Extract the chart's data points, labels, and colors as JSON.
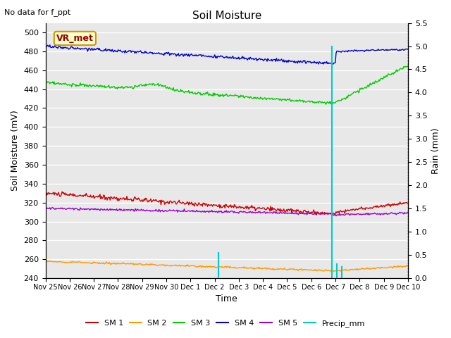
{
  "title": "Soil Moisture",
  "subtitle": "No data for f_ppt",
  "xlabel": "Time",
  "ylabel_left": "Soil Moisture (mV)",
  "ylabel_right": "Rain (mm)",
  "annotation": "VR_met",
  "ylim_left": [
    240,
    510
  ],
  "ylim_right": [
    0.0,
    5.5
  ],
  "yticks_left": [
    240,
    260,
    280,
    300,
    320,
    340,
    360,
    380,
    400,
    420,
    440,
    460,
    480,
    500
  ],
  "yticks_right": [
    0.0,
    0.5,
    1.0,
    1.5,
    2.0,
    2.5,
    3.0,
    3.5,
    4.0,
    4.5,
    5.0,
    5.5
  ],
  "xlim": [
    0,
    15
  ],
  "xtick_labels": [
    "Nov 25",
    "Nov 26",
    "Nov 27",
    "Nov 28",
    "Nov 29",
    "Nov 30",
    "Dec 1",
    "Dec 2",
    "Dec 3",
    "Dec 4",
    "Dec 5",
    "Dec 6",
    "Dec 7",
    "Dec 8",
    "Dec 9",
    "Dec 10"
  ],
  "xtick_positions": [
    0,
    1,
    2,
    3,
    4,
    5,
    6,
    7,
    8,
    9,
    10,
    11,
    12,
    13,
    14,
    15
  ],
  "colors": {
    "SM1": "#cc0000",
    "SM2": "#ff9900",
    "SM3": "#00cc00",
    "SM4": "#0000cc",
    "SM5": "#9900cc",
    "Precip": "#00cccc",
    "background": "#e8e8e8",
    "annotation_bg": "#ffffcc",
    "annotation_border": "#cc9900",
    "annotation_text": "#990000"
  },
  "legend_labels": [
    "SM 1",
    "SM 2",
    "SM 3",
    "SM 4",
    "SM 5",
    "Precip_mm"
  ],
  "figsize": [
    6.4,
    4.8
  ],
  "dpi": 100,
  "precip_events": [
    {
      "day": 7.15,
      "value": 0.55
    },
    {
      "day": 11.85,
      "value": 5.0
    },
    {
      "day": 12.05,
      "value": 0.3
    },
    {
      "day": 12.25,
      "value": 0.25
    }
  ]
}
